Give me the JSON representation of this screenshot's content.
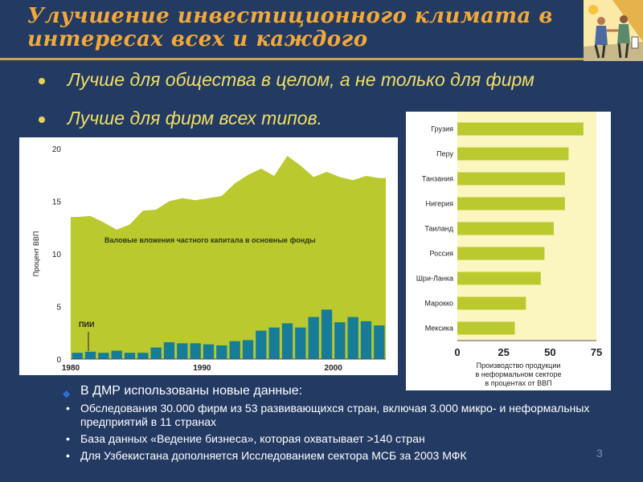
{
  "slide": {
    "title_line1": "Улучшение инвестиционного климата в",
    "title_line2": "интересах всех и каждого",
    "bullets": [
      "Лучше для общества в целом, а не только для фирм",
      "Лучше для фирм всех типов."
    ],
    "note_main": "В ДМР использованы новые данные:",
    "note_items": [
      "Обследования 30.000 фирм из 53 развивающихся стран, включая 3.000 микро- и неформальных предприятий в  11 странах",
      "База данных «Ведение бизнеса», которая охватывает >140 стран",
      "Для Узбекистана дополняется Исследованием сектора МСБ за 2003 МФК"
    ],
    "page_number": "3",
    "colors": {
      "background": "#233a63",
      "title": "#f2a93a",
      "bullet_text": "#f0df63",
      "area_fill": "#b9c92e",
      "bar_fill": "#167c98",
      "bar_chart_bg": "#fbf5bf"
    }
  },
  "chart_data": [
    {
      "type": "area",
      "ylabel": "Процент ВВП",
      "ylim": [
        0,
        20
      ],
      "yticks": [
        "0",
        "5",
        "10",
        "15",
        "20"
      ],
      "xticks": [
        "1980",
        "1990",
        "2000"
      ],
      "x": [
        1980,
        1981,
        1982,
        1983,
        1984,
        1985,
        1986,
        1987,
        1988,
        1989,
        1990,
        1991,
        1992,
        1993,
        1994,
        1995,
        1996,
        1997,
        1998,
        1999,
        2000,
        2001,
        2002,
        2003
      ],
      "series": [
        {
          "name": "Валовые вложения частного капитала в основные фонды",
          "values": [
            13.5,
            13.6,
            13.0,
            12.3,
            12.8,
            14.1,
            14.2,
            15.0,
            15.3,
            15.1,
            15.3,
            15.5,
            16.7,
            17.5,
            18.1,
            17.4,
            19.3,
            18.4,
            17.3,
            17.8,
            17.3,
            17.0,
            17.4,
            17.2
          ]
        },
        {
          "name": "ПИИ",
          "values": [
            0.6,
            0.7,
            0.6,
            0.8,
            0.6,
            0.6,
            1.1,
            1.6,
            1.5,
            1.5,
            1.4,
            1.3,
            1.7,
            1.8,
            2.7,
            3.0,
            3.4,
            3.0,
            4.0,
            4.7,
            3.5,
            4.0,
            3.6,
            3.2
          ]
        }
      ]
    },
    {
      "type": "bar",
      "categories": [
        "Грузия",
        "Перу",
        "Танзания",
        "Нигерия",
        "Таиланд",
        "Россия",
        "Шри-Ланка",
        "Марокко",
        "Мексика"
      ],
      "values": [
        68,
        60,
        58,
        58,
        52,
        47,
        45,
        37,
        31
      ],
      "xlim": [
        0,
        75
      ],
      "xticks": [
        "0",
        "25",
        "50",
        "75"
      ],
      "xlabel": "Производство продукции в неформальном секторе в процентах от ВВП"
    }
  ]
}
